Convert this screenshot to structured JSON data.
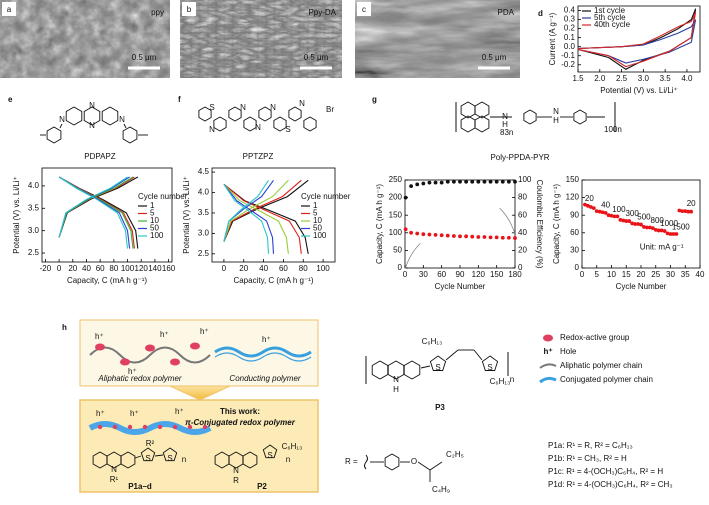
{
  "sem_images": [
    {
      "letter": "a",
      "label": "ppy",
      "scale_bar": "0.5 μm"
    },
    {
      "letter": "b",
      "label": "Ppy-DA",
      "scale_bar": "0.5 μm"
    },
    {
      "letter": "c",
      "label": "PDA",
      "scale_bar": "0.5 μm"
    }
  ],
  "structures": {
    "e": {
      "letter": "e",
      "name": "PDPAPZ",
      "atoms": [
        "N",
        "N",
        "N",
        "N"
      ]
    },
    "f": {
      "letter": "f",
      "name": "PPTZPZ",
      "atoms": [
        "S",
        "N",
        "N",
        "N",
        "N",
        "S",
        "N",
        "Br"
      ]
    },
    "g": {
      "letter": "g",
      "name": "Poly-PPDA-PYR",
      "atoms": [
        "N",
        "H",
        "N",
        "H"
      ],
      "subscripts": [
        "83n",
        "100n"
      ]
    }
  },
  "chart_data": [
    {
      "type": "line",
      "panel": "d",
      "xlabel": "Potential (V) vs. Li/Li⁺",
      "ylabel": "Current (A g⁻¹)",
      "xlim": [
        1.5,
        4.3
      ],
      "ylim": [
        -0.28,
        0.45
      ],
      "xticks": [
        1.5,
        {
          "value": 2,
          "label": "2.0"
        },
        2.5,
        {
          "value": 3,
          "label": "3.0"
        },
        3.5,
        {
          "value": 4,
          "label": "4.0"
        }
      ],
      "yticks": [
        -0.2,
        -0.1,
        {
          "value": 0,
          "label": "0.0"
        },
        0.1,
        0.2,
        0.3,
        0.4
      ],
      "legend": "upper left",
      "series": [
        {
          "name": "1st cycle",
          "color": "#111111",
          "x": [
            1.5,
            2.5,
            3.0,
            3.4,
            3.8,
            4.1,
            4.2,
            4.1,
            3.6,
            3.0,
            2.6,
            2.2,
            1.5
          ],
          "values": [
            -0.02,
            0.0,
            0.02,
            0.1,
            0.2,
            0.3,
            0.42,
            0.1,
            -0.05,
            -0.15,
            -0.25,
            -0.12,
            -0.03
          ]
        },
        {
          "name": "5th cycle",
          "color": "#2b3c9e",
          "x": [
            1.5,
            2.5,
            3.0,
            3.4,
            3.8,
            4.1,
            4.2,
            4.1,
            3.6,
            3.0,
            2.6,
            2.2,
            1.5
          ],
          "values": [
            -0.02,
            0.0,
            0.02,
            0.08,
            0.15,
            0.22,
            0.3,
            0.05,
            -0.06,
            -0.14,
            -0.18,
            -0.1,
            -0.03
          ]
        },
        {
          "name": "40th cycle",
          "color": "#d62728",
          "x": [
            1.5,
            2.5,
            3.0,
            3.4,
            3.8,
            4.1,
            4.2,
            4.1,
            3.6,
            3.0,
            2.6,
            2.2,
            1.5
          ],
          "values": [
            -0.02,
            0.0,
            0.03,
            0.12,
            0.22,
            0.28,
            0.38,
            0.1,
            -0.05,
            -0.16,
            -0.22,
            -0.1,
            -0.03
          ]
        }
      ]
    },
    {
      "type": "line",
      "xlabel": "Capacity, C (mA h g⁻¹)",
      "ylabel": "Potential (V) vs. Li/Li⁺",
      "xlim": [
        -25,
        165
      ],
      "ylim": [
        2.3,
        4.4
      ],
      "xticks": [
        -20,
        0,
        20,
        40,
        60,
        80,
        100,
        120,
        140,
        160
      ],
      "yticks": [
        2.5,
        {
          "value": 3,
          "label": "3.0"
        },
        3.5,
        {
          "value": 4,
          "label": "4.0"
        }
      ],
      "legend": "right",
      "legend_title": "Cycle number",
      "series": [
        {
          "name": "1",
          "color": "#111111",
          "x": [
            0,
            29,
            63,
            98,
            112,
            115,
            null,
            0,
            12,
            46,
            86,
            115
          ],
          "values": [
            4.2,
            3.95,
            3.7,
            3.4,
            3.0,
            2.6,
            null,
            2.85,
            3.4,
            3.7,
            3.95,
            4.2
          ]
        },
        {
          "name": "5",
          "color": "#e0201b",
          "x": [
            0,
            28,
            61,
            94,
            107,
            110,
            null,
            0,
            11,
            44,
            83,
            110
          ],
          "values": [
            4.2,
            3.95,
            3.7,
            3.4,
            3.0,
            2.6,
            null,
            2.85,
            3.4,
            3.7,
            3.95,
            4.2
          ]
        },
        {
          "name": "10",
          "color": "#3cb532",
          "x": [
            0,
            27,
            59,
            92,
            105,
            108,
            null,
            0,
            11,
            43,
            81,
            108
          ],
          "values": [
            4.2,
            3.95,
            3.7,
            3.4,
            3.0,
            2.6,
            null,
            2.85,
            3.4,
            3.7,
            3.95,
            4.2
          ]
        },
        {
          "name": "50",
          "color": "#2a3fd6",
          "x": [
            0,
            26,
            57,
            88,
            100,
            103,
            null,
            0,
            10,
            41,
            77,
            103
          ],
          "values": [
            4.2,
            3.95,
            3.7,
            3.4,
            3.0,
            2.6,
            null,
            2.85,
            3.4,
            3.7,
            3.95,
            4.2
          ]
        },
        {
          "name": "100",
          "color": "#2cc6c9",
          "x": [
            0,
            25,
            55,
            85,
            97,
            100,
            null,
            0,
            10,
            40,
            75,
            100
          ],
          "values": [
            4.2,
            3.95,
            3.7,
            3.4,
            3.0,
            2.6,
            null,
            2.85,
            3.4,
            3.7,
            3.95,
            4.2
          ]
        }
      ]
    },
    {
      "type": "line",
      "xlabel": "Capacity, C (mA h g⁻¹)",
      "ylabel": "Potential (V) vs. Li/Li⁺",
      "xlim": [
        -12,
        112
      ],
      "ylim": [
        2.3,
        4.6
      ],
      "xticks": [
        0,
        20,
        40,
        60,
        80,
        100
      ],
      "yticks": [
        2.5,
        {
          "value": 3,
          "label": "3.0"
        },
        3.5,
        {
          "value": 4,
          "label": "4.0"
        },
        4.5
      ],
      "legend": "right",
      "legend_title": "Cycle number",
      "series": [
        {
          "name": "1",
          "color": "#111111",
          "x": [
            0,
            21,
            47,
            72,
            82,
            85,
            null,
            0,
            9,
            34,
            64,
            85
          ],
          "values": [
            4.2,
            3.8,
            3.55,
            3.3,
            2.9,
            2.5,
            null,
            2.8,
            3.3,
            3.6,
            3.9,
            4.3
          ]
        },
        {
          "name": "5",
          "color": "#e0201b",
          "x": [
            0,
            20,
            43,
            66,
            76,
            78,
            null,
            0,
            8,
            31,
            59,
            78
          ],
          "values": [
            4.2,
            3.8,
            3.55,
            3.3,
            2.9,
            2.5,
            null,
            2.8,
            3.3,
            3.6,
            3.9,
            4.3
          ]
        },
        {
          "name": "10",
          "color": "#9acd32",
          "x": [
            0,
            16,
            36,
            55,
            63,
            65,
            null,
            0,
            7,
            26,
            49,
            65
          ],
          "values": [
            4.2,
            3.8,
            3.55,
            3.3,
            2.9,
            2.5,
            null,
            2.8,
            3.3,
            3.6,
            3.9,
            4.3
          ]
        },
        {
          "name": "50",
          "color": "#2a3fd6",
          "x": [
            0,
            13,
            28,
            43,
            49,
            50,
            null,
            0,
            5,
            20,
            38,
            50
          ],
          "values": [
            4.2,
            3.8,
            3.55,
            3.3,
            2.9,
            2.5,
            null,
            2.8,
            3.3,
            3.6,
            3.9,
            4.3
          ]
        },
        {
          "name": "100",
          "color": "#2cc6c9",
          "x": [
            0,
            11,
            25,
            38,
            44,
            45,
            null,
            0,
            5,
            18,
            34,
            45
          ],
          "values": [
            4.2,
            3.8,
            3.55,
            3.3,
            2.9,
            2.5,
            null,
            2.8,
            3.3,
            3.6,
            3.9,
            4.3
          ]
        }
      ]
    },
    {
      "type": "scatter",
      "xlabel": "Cycle Number",
      "ylabel": "Capacity, C (mA h g⁻¹)",
      "y2label": "Coulombic Efficiency (%)",
      "xlim": [
        0,
        180
      ],
      "ylim": [
        0,
        250
      ],
      "y2lim": [
        0,
        100
      ],
      "xticks": [
        0,
        30,
        60,
        90,
        120,
        150,
        180
      ],
      "yticks": [
        0,
        50,
        100,
        150,
        200,
        250
      ],
      "y2ticks": [
        0,
        20,
        40,
        60,
        80,
        100
      ],
      "series": [
        {
          "color": "#e8141a",
          "x": [
            1,
            10,
            20,
            30,
            40,
            50,
            60,
            70,
            80,
            90,
            100,
            110,
            120,
            130,
            140,
            150,
            160,
            170,
            180
          ],
          "values": [
            110,
            100,
            98,
            96,
            95,
            94,
            93,
            92,
            91,
            90,
            90,
            89,
            88,
            88,
            87,
            87,
            86,
            86,
            85
          ]
        },
        {
          "color": "#111111",
          "axis": "y2",
          "x": [
            1,
            10,
            20,
            30,
            40,
            50,
            60,
            70,
            80,
            90,
            100,
            110,
            120,
            130,
            140,
            150,
            160,
            170,
            180
          ],
          "values": [
            80,
            93,
            95,
            96,
            97,
            97,
            97,
            98,
            98,
            98,
            98,
            98,
            98,
            98,
            98,
            98,
            98,
            98,
            98
          ]
        }
      ]
    },
    {
      "type": "scatter",
      "xlabel": "Cycle Number",
      "ylabel": "Capacity, C (mA h g⁻¹)",
      "xlim": [
        0,
        40
      ],
      "ylim": [
        0,
        150
      ],
      "xticks": [
        0,
        5,
        10,
        15,
        20,
        25,
        30,
        35,
        40
      ],
      "yticks": [
        0,
        30,
        60,
        90,
        120,
        150
      ],
      "annotations": [
        "20",
        "40",
        "100",
        "300",
        "500",
        "800",
        "1000",
        "1500",
        "20"
      ],
      "unit_note": "Unit: mA g⁻¹",
      "series": [
        {
          "color": "#e8141a",
          "x": [
            1,
            2,
            3,
            4,
            5,
            6,
            7,
            8,
            9,
            10,
            11,
            12,
            13,
            14,
            15,
            16,
            17,
            18,
            19,
            20,
            21,
            22,
            23,
            24,
            25,
            26,
            27,
            28,
            29,
            30,
            31,
            32,
            33,
            34,
            35,
            36,
            37
          ],
          "values": [
            108,
            106,
            104,
            102,
            97,
            96,
            95,
            94,
            90,
            89,
            88,
            88,
            82,
            81,
            80,
            80,
            76,
            75,
            75,
            74,
            70,
            69,
            69,
            68,
            65,
            64,
            64,
            63,
            59,
            58,
            58,
            58,
            98,
            97,
            97,
            96,
            96
          ]
        }
      ]
    }
  ],
  "scheme_h": {
    "letter": "h",
    "hole": "h⁺",
    "aliphatic": "Aliphatic redox polymer",
    "conducting": "Conducting polymer",
    "this_work": "This work:",
    "conjugated": "π-Conjugated redox polymer",
    "polymers": [
      "P1a–d",
      "P2",
      "P3"
    ],
    "atoms": [
      "N",
      "R¹",
      "S",
      "R²",
      "S",
      "n",
      "N",
      "R",
      "S",
      "C₆H₁₃",
      "n",
      "S",
      "N",
      "H",
      "S",
      "C₆H₁₃",
      "C₆H₁₃",
      "n"
    ],
    "legend": [
      "Redox-active group",
      "Hole",
      "Aliphatic polymer chain",
      "Conjugated polymer chain"
    ],
    "r_def": "R =",
    "r_atoms": [
      "O",
      "C₂H₅",
      "C₄H₉"
    ],
    "variants": [
      "P1a: R¹ = R, R² = C₆H₁₃",
      "P1b: R¹ = CH₃, R² = H",
      "P1c: R¹ = 4-(OCH₃)C₆H₄, R² = H",
      "P1d: R¹ = 4-(OCH₃)C₆H₄, R² = CH₃"
    ]
  }
}
